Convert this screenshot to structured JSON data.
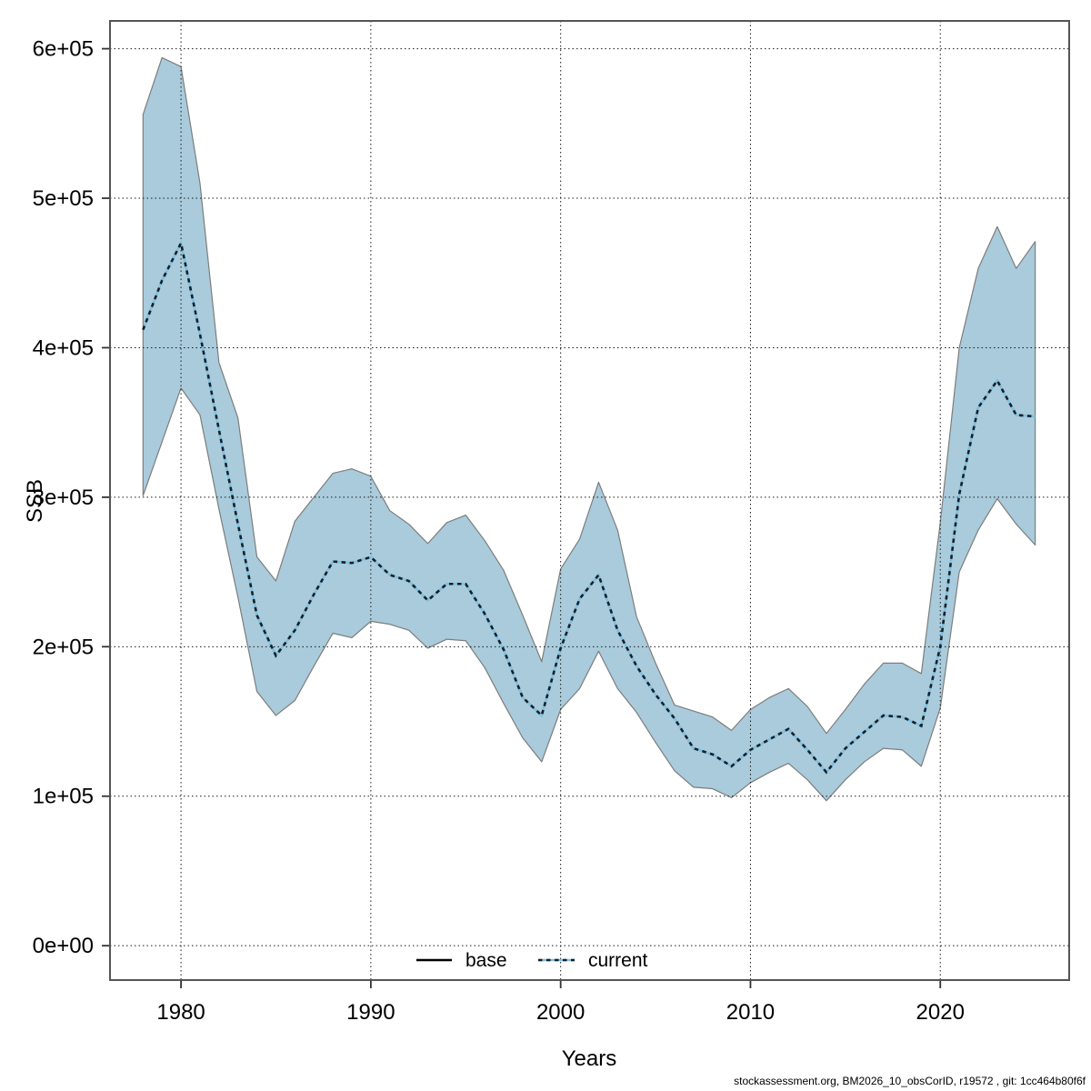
{
  "chart_data": {
    "type": "area",
    "title": "",
    "xlabel": "Years",
    "ylabel": "SSB",
    "grid": true,
    "legend_position": "bottom-center-inside",
    "xlim": [
      1976.26,
      2026.79
    ],
    "ylim": [
      -23000,
      618600
    ],
    "xticks": [
      {
        "value": 1980,
        "label": "1980"
      },
      {
        "value": 1990,
        "label": "1990"
      },
      {
        "value": 2000,
        "label": "2000"
      },
      {
        "value": 2010,
        "label": "2010"
      },
      {
        "value": 2020,
        "label": "2020"
      }
    ],
    "yticks": [
      {
        "value": 0,
        "label": "0e+00"
      },
      {
        "value": 100000,
        "label": "1e+05"
      },
      {
        "value": 200000,
        "label": "2e+05"
      },
      {
        "value": 300000,
        "label": "3e+05"
      },
      {
        "value": 400000,
        "label": "4e+05"
      },
      {
        "value": 500000,
        "label": "5e+05"
      },
      {
        "value": 600000,
        "label": "6e+05"
      }
    ],
    "x": [
      1978,
      1979,
      1980,
      1981,
      1982,
      1983,
      1984,
      1985,
      1986,
      1987,
      1988,
      1989,
      1990,
      1991,
      1992,
      1993,
      1994,
      1995,
      1996,
      1997,
      1998,
      1999,
      2000,
      2001,
      2002,
      2003,
      2004,
      2005,
      2006,
      2007,
      2008,
      2009,
      2010,
      2011,
      2012,
      2013,
      2014,
      2015,
      2016,
      2017,
      2018,
      2019,
      2020,
      2021,
      2022,
      2023,
      2024,
      2025
    ],
    "series": [
      {
        "name": "current (mean)",
        "style": "dashed",
        "values": [
          412000,
          445000,
          470000,
          409000,
          345000,
          282000,
          221000,
          194000,
          211000,
          235000,
          257000,
          256000,
          260000,
          248000,
          244000,
          231000,
          242000,
          242000,
          222000,
          198000,
          166000,
          154000,
          199000,
          232000,
          248000,
          211000,
          187000,
          168000,
          152000,
          132000,
          128000,
          120000,
          131000,
          138000,
          145000,
          131000,
          116000,
          132000,
          143000,
          154000,
          153000,
          147000,
          200000,
          302000,
          360000,
          378000,
          355000,
          354000
        ]
      },
      {
        "name": "current (band low)",
        "style": "band-edge",
        "values": [
          301000,
          337000,
          373000,
          355000,
          292000,
          233000,
          170000,
          154000,
          164000,
          187000,
          209000,
          206000,
          217000,
          215000,
          211000,
          199000,
          205000,
          204000,
          186000,
          162000,
          139000,
          123000,
          158000,
          172000,
          197000,
          172000,
          156000,
          136000,
          117000,
          106000,
          105000,
          99000,
          109000,
          116000,
          122000,
          111000,
          97000,
          111000,
          123000,
          132000,
          131000,
          120000,
          159000,
          250000,
          278000,
          299000,
          282000,
          268000
        ]
      },
      {
        "name": "current (band high)",
        "style": "band-edge",
        "values": [
          556000,
          594000,
          588000,
          510000,
          390000,
          353000,
          260000,
          244000,
          284000,
          300000,
          316000,
          319000,
          314000,
          291000,
          282000,
          269000,
          283000,
          288000,
          271000,
          251000,
          221000,
          190000,
          252000,
          272000,
          310000,
          278000,
          220000,
          189000,
          161000,
          157000,
          153000,
          144000,
          158000,
          166000,
          172000,
          160000,
          142000,
          158000,
          175000,
          189000,
          189000,
          182000,
          283000,
          400000,
          453000,
          481000,
          453000,
          471000
        ]
      }
    ],
    "legend": [
      {
        "label": "base",
        "line": "solid",
        "color": "#000000"
      },
      {
        "label": "current",
        "line": "dashed",
        "color": "#7fc0e0"
      }
    ]
  },
  "footer": {
    "text": "stockassessment.org, BM2026_10_obsCorID, r19572 , git: 1cc464b80f6f"
  },
  "colors": {
    "band_fill": "#a9cbdb",
    "band_edge": "#7d7d7d",
    "mean_dark": "#14202b",
    "mean_light": "#7fc0e0",
    "grid": "#1a1a1a",
    "frame": "#555555",
    "tick": "#333333"
  }
}
